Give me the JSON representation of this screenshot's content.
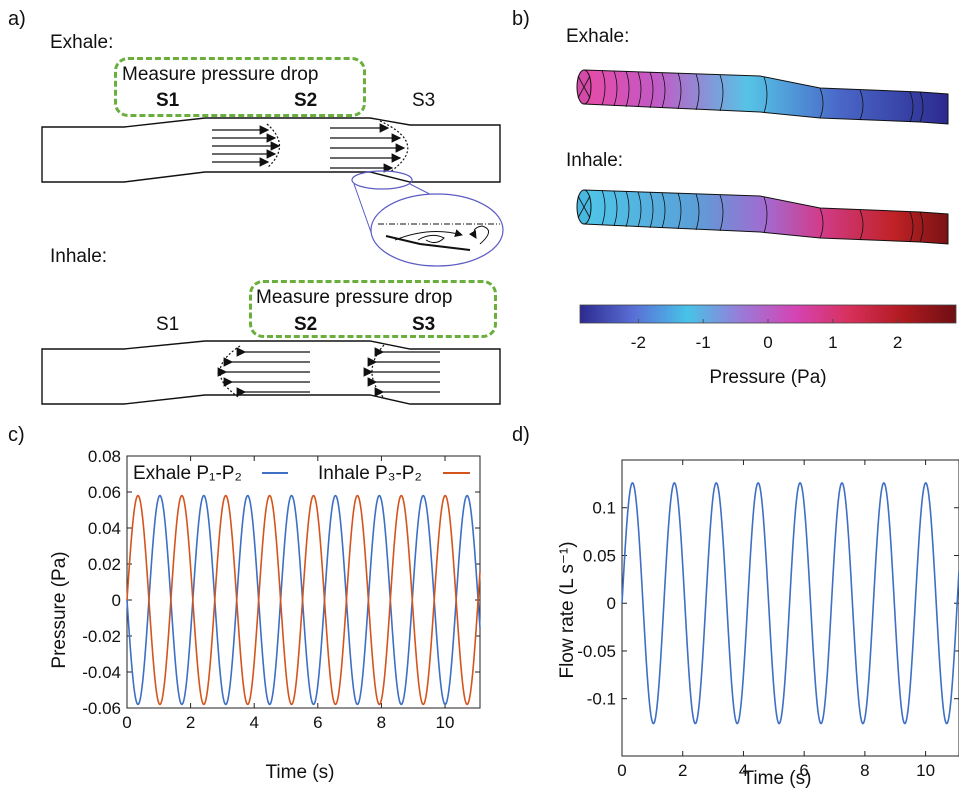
{
  "panels": {
    "a": {
      "label": "a)",
      "exhale_title": "Exhale:",
      "inhale_title": "Inhale:",
      "exhale_box": "Measure pressure drop",
      "inhale_box": "Measure pressure drop",
      "exhale_sections": [
        "S1",
        "S2",
        "S3"
      ],
      "inhale_sections": [
        "S1",
        "S2",
        "S3"
      ]
    },
    "b": {
      "label": "b)",
      "exhale_title": "Exhale:",
      "inhale_title": "Inhale:",
      "colorbar_ticks": [
        "-2",
        "-1",
        "0",
        "1",
        "2"
      ],
      "colorbar_label": "Pressure (Pa)",
      "colorbar_range": [
        -2.9,
        2.9
      ],
      "colorbar_colors": [
        "#2c2a8f",
        "#5a6fd6",
        "#47c3e8",
        "#9a7ad8",
        "#d444b4",
        "#d8305c",
        "#b01a20",
        "#6e0f12"
      ]
    },
    "c": {
      "label": "c)",
      "legend_exhale": "Exhale P₁-P₂",
      "legend_inhale": "Inhale P₃-P₂"
    },
    "d": {
      "label": "d)"
    }
  },
  "chart_data": [
    {
      "type": "line",
      "panel": "c",
      "xlabel": "Time (s)",
      "ylabel": "Pressure (Pa)",
      "xlim": [
        0,
        11.1
      ],
      "ylim": [
        -0.06,
        0.08
      ],
      "xticks": [
        "0",
        "2",
        "4",
        "6",
        "8",
        "10"
      ],
      "yticks": [
        "-0.06",
        "-0.04",
        "-0.02",
        "0",
        "0.02",
        "0.04",
        "0.06",
        "0.08"
      ],
      "period": 1.38,
      "series": [
        {
          "name": "Exhale P₁-P₂",
          "color": "#3d6fc4",
          "amplitude": 0.058,
          "form": "-sin(2*pi*t/T)"
        },
        {
          "name": "Inhale P₃-P₂",
          "color": "#d4541d",
          "amplitude": 0.058,
          "form": "sin(2*pi*t/T)"
        }
      ]
    },
    {
      "type": "line",
      "panel": "d",
      "xlabel": "Time (s)",
      "ylabel": "Flow rate (L s⁻¹)",
      "xlim": [
        0,
        11.1
      ],
      "ylim": [
        -0.16,
        0.15
      ],
      "xticks": [
        "0",
        "2",
        "4",
        "6",
        "8",
        "10"
      ],
      "yticks": [
        "-0.1",
        "-0.05",
        "0",
        "0.05",
        "0.1"
      ],
      "period": 1.38,
      "series": [
        {
          "color": "#3d6fc4",
          "amplitude": 0.126,
          "form": "sin(2*pi*t/T)"
        }
      ]
    }
  ]
}
